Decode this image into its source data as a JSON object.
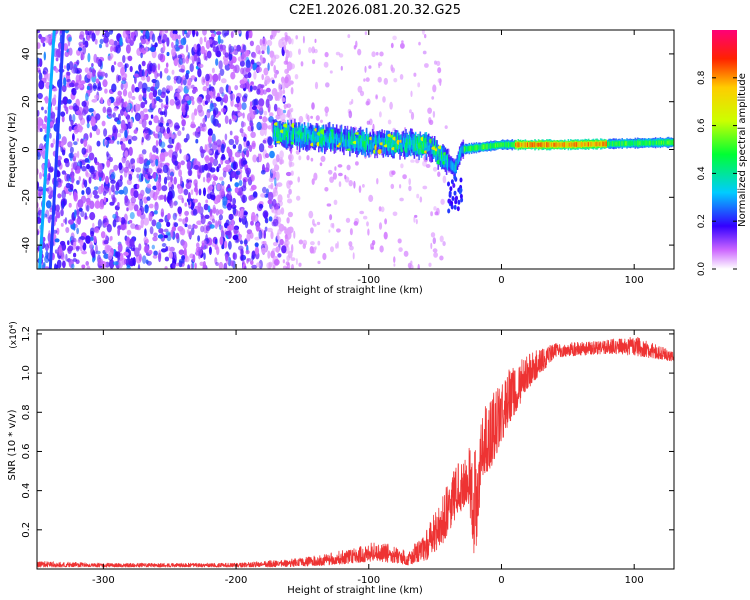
{
  "title": "C2E1.2026.081.20.32.G25",
  "chart_data": [
    {
      "type": "heatmap",
      "xlabel": "Height of straight line (km)",
      "ylabel": "Frequency (Hz)",
      "xlim": [
        -350,
        130
      ],
      "ylim": [
        -50,
        50
      ],
      "xticks": [
        -300,
        -200,
        -100,
        0,
        100
      ],
      "yticks": [
        -40,
        -20,
        0,
        20,
        40
      ],
      "colorbar": {
        "label": "Normalized spectral amplitude",
        "range": [
          0.0,
          1.0
        ],
        "ticks": [
          0.0,
          0.2,
          0.4,
          0.6,
          0.8
        ]
      },
      "features": {
        "noise_region_x": [
          -350,
          -165
        ],
        "sparse_region_x": [
          -165,
          -40
        ],
        "signal_band_center_hz": [
          {
            "x": -170,
            "y": 7
          },
          {
            "x": -100,
            "y": 3
          },
          {
            "x": -55,
            "y": 2
          },
          {
            "x": -35,
            "y": -8
          },
          {
            "x": -30,
            "y": 0
          },
          {
            "x": 0,
            "y": 2
          },
          {
            "x": 50,
            "y": 2
          },
          {
            "x": 130,
            "y": 3
          }
        ],
        "vertical_tracks": [
          {
            "x_top": -337,
            "x_bottom": -348
          },
          {
            "x_top": -330,
            "x_bottom": -340
          }
        ]
      }
    },
    {
      "type": "line",
      "xlabel": "Height of straight line (km)",
      "ylabel": "SNR (10 * v/v)",
      "multiplier_label": "(x10⁴)",
      "xlim": [
        -350,
        130
      ],
      "ylim": [
        0,
        1.22
      ],
      "xticks": [
        -300,
        -200,
        -100,
        0,
        100
      ],
      "yticks": [
        0.2,
        0.4,
        0.6,
        0.8,
        1.0,
        1.2
      ],
      "series": [
        {
          "name": "SNR",
          "color": "#ee3333",
          "envelope": [
            {
              "x": -350,
              "low": 0.01,
              "high": 0.04
            },
            {
              "x": -300,
              "low": 0.01,
              "high": 0.03
            },
            {
              "x": -200,
              "low": 0.01,
              "high": 0.03
            },
            {
              "x": -160,
              "low": 0.01,
              "high": 0.05
            },
            {
              "x": -130,
              "low": 0.02,
              "high": 0.08
            },
            {
              "x": -110,
              "low": 0.03,
              "high": 0.11
            },
            {
              "x": -95,
              "low": 0.04,
              "high": 0.14
            },
            {
              "x": -80,
              "low": 0.03,
              "high": 0.12
            },
            {
              "x": -70,
              "low": 0.02,
              "high": 0.09
            },
            {
              "x": -55,
              "low": 0.05,
              "high": 0.22
            },
            {
              "x": -45,
              "low": 0.12,
              "high": 0.38
            },
            {
              "x": -35,
              "low": 0.25,
              "high": 0.52
            },
            {
              "x": -25,
              "low": 0.35,
              "high": 0.62
            },
            {
              "x": -20,
              "low": 0.03,
              "high": 0.6
            },
            {
              "x": -15,
              "low": 0.45,
              "high": 0.82
            },
            {
              "x": -5,
              "low": 0.55,
              "high": 0.92
            },
            {
              "x": 5,
              "low": 0.72,
              "high": 1.02
            },
            {
              "x": 20,
              "low": 0.92,
              "high": 1.1
            },
            {
              "x": 40,
              "low": 1.08,
              "high": 1.15
            },
            {
              "x": 80,
              "low": 1.1,
              "high": 1.17
            },
            {
              "x": 100,
              "low": 1.09,
              "high": 1.19
            },
            {
              "x": 130,
              "low": 1.06,
              "high": 1.11
            }
          ]
        }
      ]
    }
  ]
}
